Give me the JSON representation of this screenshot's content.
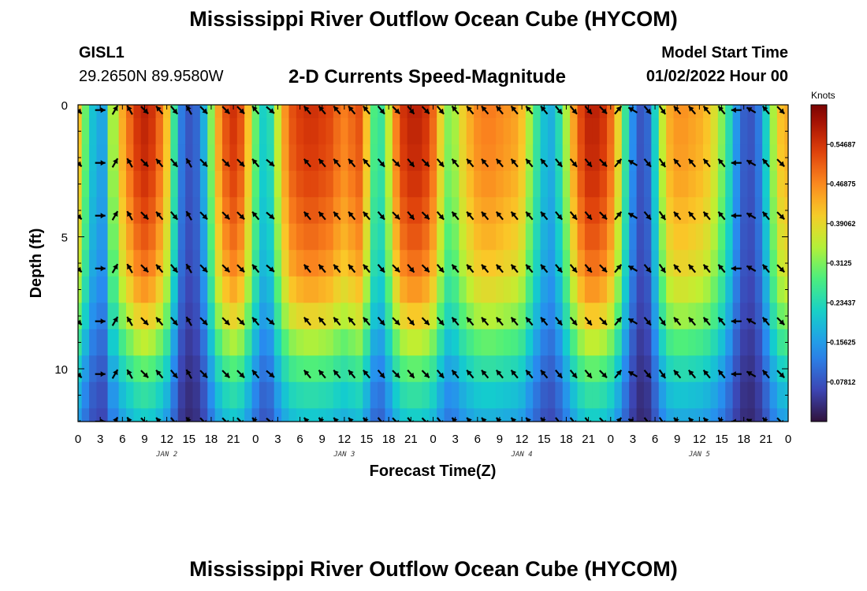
{
  "header": {
    "title": "Mississippi River Outflow Ocean Cube (HYCOM)",
    "station_id": "GISL1",
    "station_coords": "29.2650N  89.9580W",
    "subtitle": "2-D Currents Speed-Magnitude",
    "model_start_label": "Model Start Time",
    "model_start_value": "01/02/2022 Hour 00"
  },
  "footer": {
    "title": "Mississippi River Outflow Ocean Cube (HYCOM)"
  },
  "chart_data": {
    "type": "heatmap",
    "xlabel": "Forecast Time(Z)",
    "ylabel": "Depth (ft)",
    "colorbar_unit": "Knots",
    "colorbar_ticks": [
      "0.07812",
      "0.15625",
      "0.23437",
      "0.3125",
      "0.39062",
      "0.46875",
      "0.54687"
    ],
    "vmin": 0.0,
    "vmax": 0.625,
    "x_tick_labels": [
      "0",
      "3",
      "6",
      "9",
      "12",
      "15",
      "18",
      "21",
      "0",
      "3",
      "6",
      "9",
      "12",
      "15",
      "18",
      "21",
      "0",
      "3",
      "6",
      "9",
      "12",
      "15",
      "18",
      "21",
      "0",
      "3",
      "6",
      "9",
      "12",
      "15",
      "18",
      "21",
      "0"
    ],
    "day_labels": [
      {
        "text": "JAN 2",
        "hour": 12
      },
      {
        "text": "JAN 3",
        "hour": 36
      },
      {
        "text": "JAN 4",
        "hour": 60
      },
      {
        "text": "JAN 5",
        "hour": 84
      }
    ],
    "x_range_hours": [
      0,
      96
    ],
    "y_tick_labels": [
      "0",
      "5",
      "10"
    ],
    "y_range_ft": [
      0,
      12
    ],
    "depth_levels_ft": [
      0,
      1,
      2,
      3,
      4,
      5,
      6,
      7,
      8,
      9,
      10,
      11,
      12
    ],
    "speed_profile_hours": [
      0,
      1,
      2,
      3,
      5,
      6,
      7,
      8,
      9,
      10,
      11,
      12,
      13,
      14,
      15,
      16,
      17,
      18,
      19,
      20,
      21,
      22,
      23,
      24,
      25,
      26,
      27,
      28,
      29,
      30,
      31,
      32,
      33,
      34,
      35,
      36,
      37,
      38,
      39,
      40,
      41,
      42,
      43,
      44,
      45,
      46,
      47,
      48,
      49,
      50,
      51,
      52,
      53,
      54,
      55,
      56,
      57,
      58,
      59,
      60,
      61,
      62,
      63,
      64,
      65,
      66,
      67,
      68,
      69,
      70,
      71,
      72,
      73,
      74,
      75,
      76,
      77,
      78,
      79,
      80,
      81,
      82,
      83,
      84,
      85,
      86,
      87,
      88,
      89,
      90,
      91,
      92,
      93,
      94,
      95,
      96
    ],
    "surface_speed_knots": [
      0.42,
      0.3,
      0.2,
      0.17,
      0.34,
      0.44,
      0.5,
      0.55,
      0.57,
      0.55,
      0.5,
      0.42,
      0.26,
      0.12,
      0.08,
      0.1,
      0.18,
      0.32,
      0.45,
      0.52,
      0.55,
      0.52,
      0.42,
      0.3,
      0.22,
      0.24,
      0.36,
      0.46,
      0.52,
      0.54,
      0.55,
      0.55,
      0.54,
      0.53,
      0.5,
      0.48,
      0.5,
      0.52,
      0.42,
      0.28,
      0.26,
      0.36,
      0.48,
      0.55,
      0.57,
      0.57,
      0.55,
      0.5,
      0.4,
      0.32,
      0.34,
      0.4,
      0.44,
      0.47,
      0.48,
      0.48,
      0.47,
      0.46,
      0.45,
      0.42,
      0.34,
      0.26,
      0.2,
      0.18,
      0.24,
      0.34,
      0.45,
      0.53,
      0.57,
      0.57,
      0.55,
      0.5,
      0.4,
      0.26,
      0.14,
      0.08,
      0.1,
      0.22,
      0.36,
      0.44,
      0.46,
      0.46,
      0.45,
      0.44,
      0.42,
      0.38,
      0.32,
      0.24,
      0.15,
      0.09,
      0.08,
      0.12,
      0.22,
      0.34,
      0.42,
      0.44
    ],
    "depth_attenuation": [
      1.0,
      0.99,
      0.98,
      0.96,
      0.93,
      0.9,
      0.86,
      0.8,
      0.72,
      0.62,
      0.52,
      0.44,
      0.38
    ],
    "vector_depths_ft": [
      0.2,
      2.2,
      4.2,
      6.2,
      8.2,
      10.2,
      12.0
    ],
    "vector_hours": [
      0,
      3,
      5,
      7,
      9,
      11,
      13,
      15,
      17,
      20,
      22,
      24,
      26,
      31,
      33,
      35,
      37,
      39,
      41,
      43,
      45,
      47,
      49,
      51,
      53,
      55,
      57,
      59,
      61,
      63,
      65,
      67,
      69,
      71,
      73,
      75,
      77,
      79,
      81,
      83,
      85,
      87,
      89,
      91,
      93,
      95
    ],
    "vector_direction_deg_by_hour": [
      135,
      90,
      30,
      330,
      135,
      320,
      140,
      330,
      135,
      135,
      135,
      320,
      130,
      320,
      320,
      320,
      320,
      320,
      140,
      135,
      140,
      135,
      140,
      320,
      320,
      320,
      320,
      320,
      320,
      320,
      140,
      140,
      140,
      135,
      40,
      300,
      140,
      145,
      320,
      320,
      320,
      320,
      270,
      300,
      320,
      135
    ]
  }
}
